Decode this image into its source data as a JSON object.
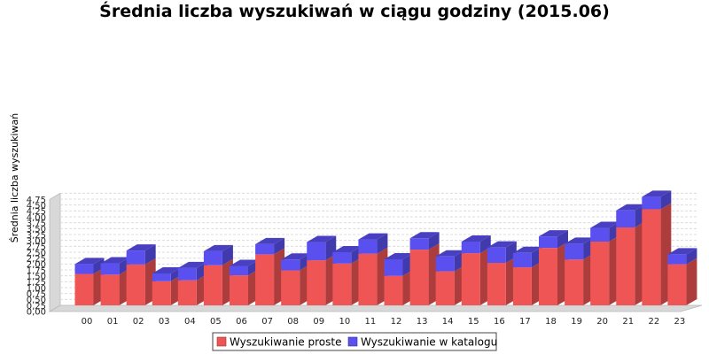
{
  "chart_data": {
    "type": "bar",
    "stacked": true,
    "title": "Średnia liczba wyszukiwań w ciągu godziny (2015.06)",
    "xlabel": "",
    "ylabel": "Średnia liczba wyszukiwań",
    "ylim": [
      0,
      4.75
    ],
    "y_ticks": [
      "0,00",
      "0,25",
      "0,50",
      "0,75",
      "1,00",
      "1,25",
      "1,50",
      "1,75",
      "2,00",
      "2,25",
      "2,50",
      "2,75",
      "3,00",
      "3,25",
      "3,50",
      "3,75",
      "4,00",
      "4,25",
      "4,50",
      "4,75"
    ],
    "grid": true,
    "legend_position": "bottom",
    "categories": [
      "00",
      "01",
      "02",
      "03",
      "04",
      "05",
      "06",
      "07",
      "08",
      "09",
      "10",
      "11",
      "12",
      "13",
      "14",
      "15",
      "16",
      "17",
      "18",
      "19",
      "20",
      "21",
      "22",
      "23"
    ],
    "series": [
      {
        "name": "Wyszukiwanie proste",
        "color": "#f05555",
        "values": [
          1.33,
          1.3,
          1.73,
          1.02,
          1.06,
          1.7,
          1.27,
          2.16,
          1.48,
          1.91,
          1.77,
          2.19,
          1.25,
          2.36,
          1.44,
          2.21,
          1.8,
          1.61,
          2.43,
          1.94,
          2.7,
          3.3,
          4.07,
          1.74
        ]
      },
      {
        "name": "Wyszukiwanie w katalogu",
        "color": "#5a50f0",
        "values": [
          0.42,
          0.48,
          0.59,
          0.33,
          0.52,
          0.59,
          0.4,
          0.43,
          0.46,
          0.77,
          0.48,
          0.6,
          0.7,
          0.48,
          0.63,
          0.49,
          0.65,
          0.61,
          0.49,
          0.67,
          0.58,
          0.72,
          0.53,
          0.42
        ]
      }
    ]
  }
}
